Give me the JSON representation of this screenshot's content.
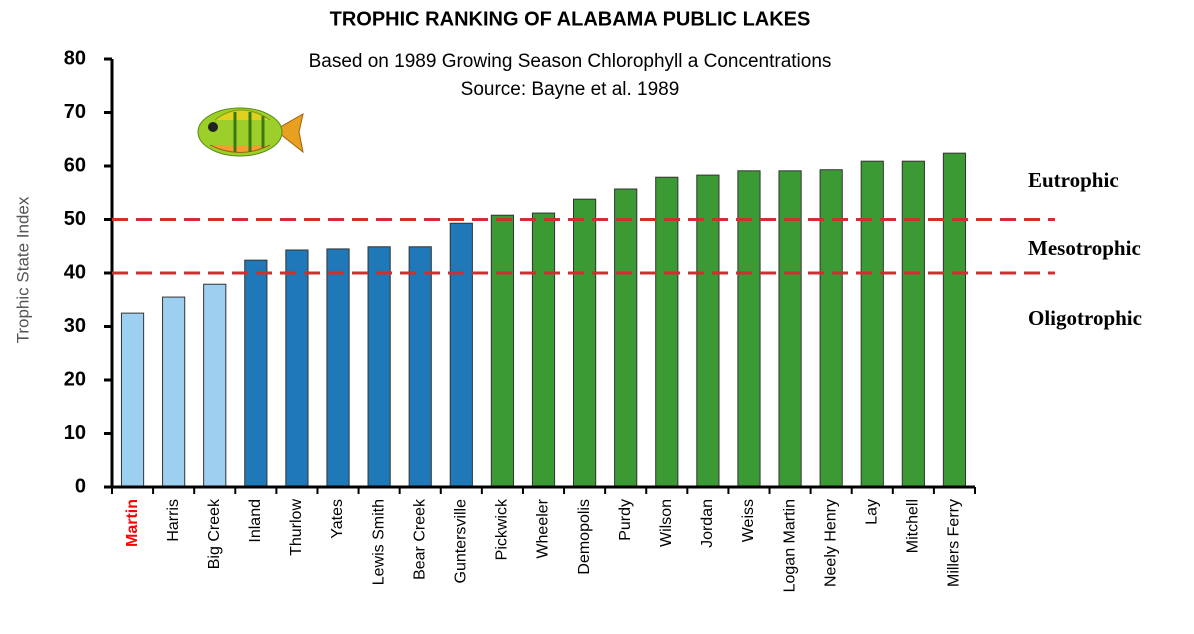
{
  "chart_data": {
    "type": "bar",
    "title": "TROPHIC RANKING OF ALABAMA PUBLIC LAKES",
    "subtitle": [
      "Based on 1989 Growing Season Chlorophyll a Concentrations",
      "Source: Bayne et al. 1989"
    ],
    "y_label": "Trophic State Index",
    "categories": [
      "Martin",
      "Harris",
      "Big Creek",
      "Inland",
      "Thurlow",
      "Yates",
      "Lewis Smith",
      "Bear Creek",
      "Guntersville",
      "Pickwick",
      "Wheeler",
      "Demopolis",
      "Purdy",
      "Wilson",
      "Jordan",
      "Weiss",
      "Logan Martin",
      "Neely Henry",
      "Lay",
      "Mitchell",
      "Millers Ferry"
    ],
    "values": [
      32.5,
      35.5,
      37.9,
      42.4,
      44.3,
      44.5,
      44.9,
      44.9,
      49.3,
      50.8,
      51.2,
      53.8,
      55.7,
      57.9,
      58.3,
      59.1,
      59.1,
      59.3,
      60.9,
      60.9,
      62.4
    ],
    "colors": [
      "#9dd0f0",
      "#9dd0f0",
      "#9dd0f0",
      "#1f78b8",
      "#1f78b8",
      "#1f78b8",
      "#1f78b8",
      "#1f78b8",
      "#1f78b8",
      "#3c9a34",
      "#3c9a34",
      "#3c9a34",
      "#3c9a34",
      "#3c9a34",
      "#3c9a34",
      "#3c9a34",
      "#3c9a34",
      "#3c9a34",
      "#3c9a34",
      "#3c9a34",
      "#3c9a34"
    ],
    "highlight_index": 0,
    "highlight_color": "#ff0000",
    "ylim": [
      0,
      80
    ],
    "yticks": [
      0,
      10,
      20,
      30,
      40,
      50,
      60,
      70,
      80
    ],
    "reference_lines": [
      {
        "value": 40,
        "color": "#cc3030"
      },
      {
        "value": 50,
        "color": "#cc3030"
      }
    ],
    "annotations": [
      "Eutrophic",
      "Mesotrophic",
      "Oligotrophic"
    ]
  }
}
